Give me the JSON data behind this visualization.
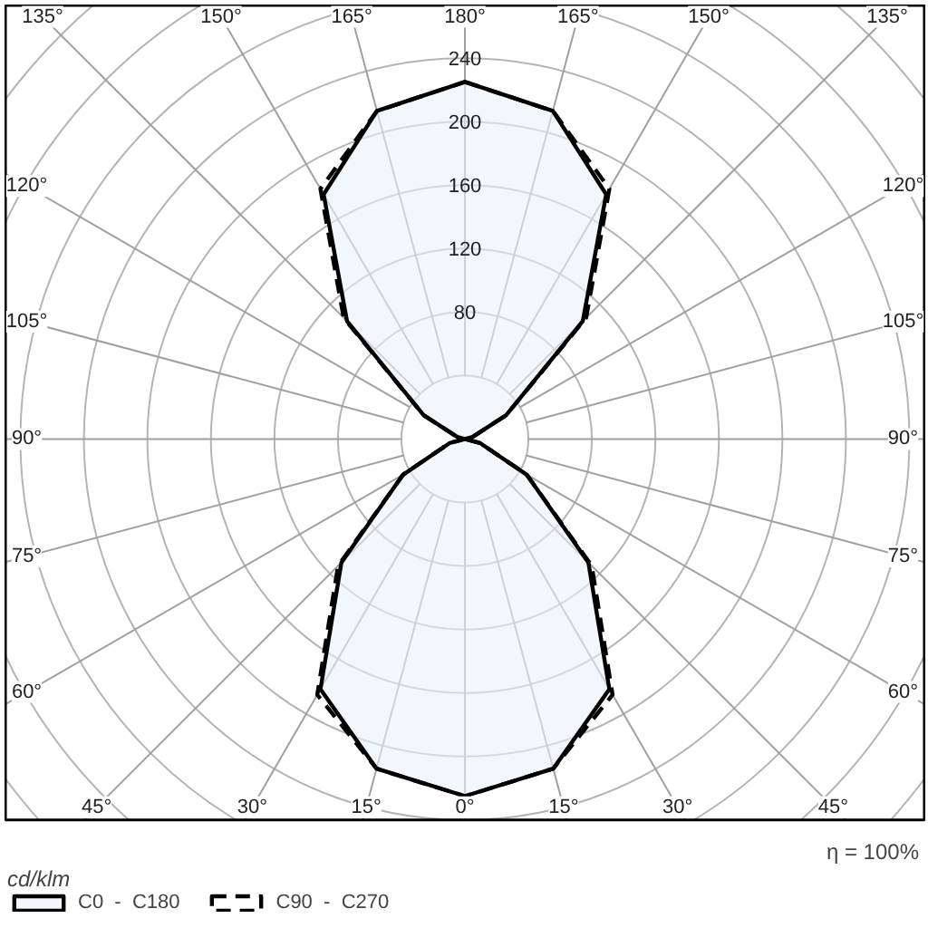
{
  "chart_data": {
    "type": "radar",
    "categories": [
      "180°",
      "165°",
      "150°",
      "135°",
      "120°",
      "105°",
      "90°",
      "75°",
      "60°",
      "45°",
      "30°",
      "15°",
      "0°",
      "15°",
      "30°",
      "45°",
      "60°",
      "75°",
      "90°",
      "105°",
      "120°",
      "135°",
      "150°",
      "165°"
    ],
    "series": [
      {
        "name": "C0  -  C180",
        "color": "#000000",
        "line_style": "solid",
        "values": [
          225,
          214,
          178,
          105,
          30,
          5,
          0,
          10,
          45,
          110,
          182,
          215,
          225,
          215,
          182,
          110,
          45,
          10,
          0,
          5,
          30,
          105,
          178,
          214
        ]
      },
      {
        "name": "C90  -  C270",
        "color": "#000000",
        "line_style": "dashed",
        "values": [
          225,
          214,
          182,
          108,
          30,
          5,
          0,
          10,
          45,
          113,
          186,
          215,
          225,
          215,
          186,
          113,
          45,
          10,
          0,
          5,
          30,
          108,
          182,
          214
        ]
      }
    ],
    "ylim": [
      0,
      400
    ],
    "yticks": [
      80,
      120,
      160,
      200,
      240
    ],
    "ylabel": "cd/klm",
    "annotations": [
      "η = 100%"
    ],
    "legend": "bottom left",
    "grid": true
  }
}
